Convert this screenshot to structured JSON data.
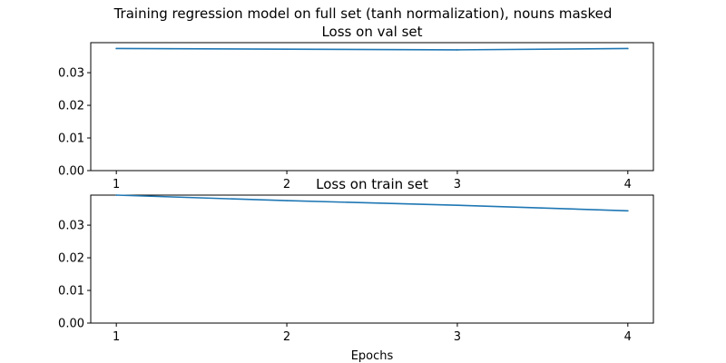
{
  "figure": {
    "suptitle": "Training regression model on full set (tanh normalization), nouns masked"
  },
  "chart_data": [
    {
      "type": "line",
      "title": "Loss on val set",
      "xlabel": "",
      "ylabel": "",
      "x": [
        1,
        2,
        3,
        4
      ],
      "xticks": [
        1,
        2,
        3,
        4
      ],
      "xtick_labels": [
        "1",
        "2",
        "3",
        "4"
      ],
      "xlim": [
        0.85,
        4.15
      ],
      "ylim": [
        0.0,
        0.0392
      ],
      "yticks": [
        0.0,
        0.01,
        0.02,
        0.03
      ],
      "ytick_labels": [
        "0.00",
        "0.01",
        "0.02",
        "0.03"
      ],
      "grid": false,
      "series": [
        {
          "values": [
            0.0374,
            0.0372,
            0.037,
            0.0374
          ],
          "color": "#1f77b4"
        }
      ]
    },
    {
      "type": "line",
      "title": "Loss on train set",
      "xlabel": "Epochs",
      "ylabel": "",
      "x": [
        1,
        2,
        3,
        4
      ],
      "xticks": [
        1,
        2,
        3,
        4
      ],
      "xtick_labels": [
        "1",
        "2",
        "3",
        "4"
      ],
      "xlim": [
        0.85,
        4.15
      ],
      "ylim": [
        0.0,
        0.0392
      ],
      "yticks": [
        0.0,
        0.01,
        0.02,
        0.03
      ],
      "ytick_labels": [
        "0.00",
        "0.01",
        "0.02",
        "0.03"
      ],
      "grid": false,
      "series": [
        {
          "values": [
            0.0392,
            0.0375,
            0.0361,
            0.0344
          ],
          "color": "#1f77b4"
        }
      ]
    }
  ]
}
